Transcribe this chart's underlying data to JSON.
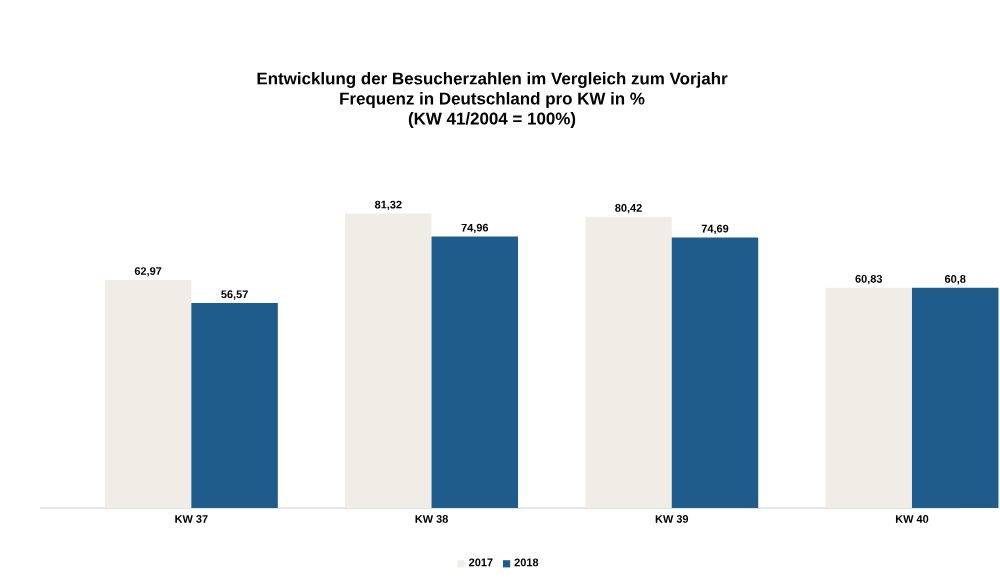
{
  "chart_data": {
    "type": "bar",
    "title": "Entwicklung der Besucherzahlen im Vergleich zum Vorjahr",
    "subtitle": "Frequenz in Deutschland pro KW in %",
    "annotations": [
      "(KW 41/2004 = 100%)"
    ],
    "categories": [
      "KW 37",
      "KW 38",
      "KW 39",
      "KW 40"
    ],
    "series": [
      {
        "name": "2017",
        "color": "#f0ede6",
        "values": [
          62.97,
          81.32,
          80.42,
          60.83
        ],
        "value_labels": [
          "62,97",
          "81,32",
          "80,42",
          "60,83"
        ]
      },
      {
        "name": "2018",
        "color": "#1f5c8b",
        "values": [
          56.57,
          74.96,
          74.69,
          60.8
        ],
        "value_labels": [
          "56,57",
          "74,96",
          "74,69",
          "60,8"
        ]
      }
    ],
    "legend": "bottom"
  }
}
